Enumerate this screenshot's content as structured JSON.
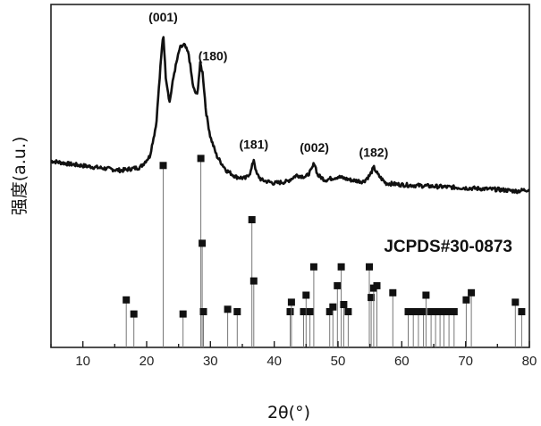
{
  "chart_data": {
    "type": "line",
    "xlabel": "2θ(°)",
    "ylabel": "强度(a.u.)",
    "xlim": [
      5,
      80
    ],
    "xticks": [
      10,
      20,
      30,
      40,
      50,
      60,
      70,
      80
    ],
    "grid": false,
    "series": [
      {
        "values_x": [
          5,
          8,
          12,
          16,
          19,
          20.5,
          21.5,
          22.2,
          22.6,
          23.0,
          23.6,
          24.3,
          25.2,
          25.9,
          26.6,
          27.3,
          27.9,
          28.4,
          28.8,
          29.3,
          30.0,
          31.0,
          32.5,
          34.0,
          35.5,
          36.3,
          36.8,
          37.2,
          38.0,
          40.0,
          42.0,
          43.5,
          45.0,
          45.8,
          46.3,
          46.8,
          48.0,
          50.0,
          52.0,
          54.0,
          55.0,
          55.6,
          56.3,
          57.5,
          60.0,
          65.0,
          70.0,
          75.0,
          78.0,
          80.0
        ],
        "values_y": [
          0.19,
          0.17,
          0.15,
          0.13,
          0.15,
          0.22,
          0.42,
          0.8,
          1.0,
          0.72,
          0.56,
          0.74,
          0.9,
          0.92,
          0.86,
          0.65,
          0.6,
          0.8,
          0.74,
          0.5,
          0.34,
          0.22,
          0.13,
          0.09,
          0.08,
          0.12,
          0.2,
          0.11,
          0.07,
          0.05,
          0.06,
          0.1,
          0.09,
          0.13,
          0.18,
          0.1,
          0.07,
          0.09,
          0.07,
          0.06,
          0.1,
          0.15,
          0.1,
          0.05,
          0.04,
          0.03,
          0.02,
          0.01,
          0.0,
          0.01
        ]
      }
    ],
    "peak_labels": [
      {
        "label": "(001)",
        "x": 22.6
      },
      {
        "label": "(180)",
        "x": 28.7
      },
      {
        "label": "(181)",
        "x": 36.8
      },
      {
        "label": "(002)",
        "x": 46.3
      },
      {
        "label": "(182)",
        "x": 55.6
      }
    ],
    "reference": {
      "label": "JCPDS#30-0873",
      "x": [
        16.8,
        18.0,
        22.6,
        25.7,
        28.5,
        28.7,
        28.9,
        32.7,
        34.2,
        36.5,
        36.8,
        42.5,
        42.7,
        44.6,
        45.0,
        45.6,
        46.2,
        48.7,
        49.2,
        49.9,
        50.5,
        50.9,
        51.6,
        54.9,
        55.2,
        55.6,
        56.1,
        58.6,
        61.0,
        61.8,
        62.6,
        63.4,
        63.8,
        64.6,
        65.3,
        66.0,
        66.6,
        67.4,
        68.2,
        70.1,
        70.9,
        77.8,
        78.8
      ],
      "intensity": [
        0.16,
        0.1,
        0.73,
        0.1,
        0.76,
        0.4,
        0.11,
        0.12,
        0.11,
        0.5,
        0.24,
        0.11,
        0.15,
        0.11,
        0.18,
        0.11,
        0.3,
        0.11,
        0.13,
        0.22,
        0.3,
        0.14,
        0.11,
        0.3,
        0.17,
        0.21,
        0.22,
        0.19,
        0.11,
        0.11,
        0.11,
        0.11,
        0.18,
        0.11,
        0.11,
        0.11,
        0.11,
        0.11,
        0.11,
        0.16,
        0.19,
        0.15,
        0.11
      ]
    }
  }
}
